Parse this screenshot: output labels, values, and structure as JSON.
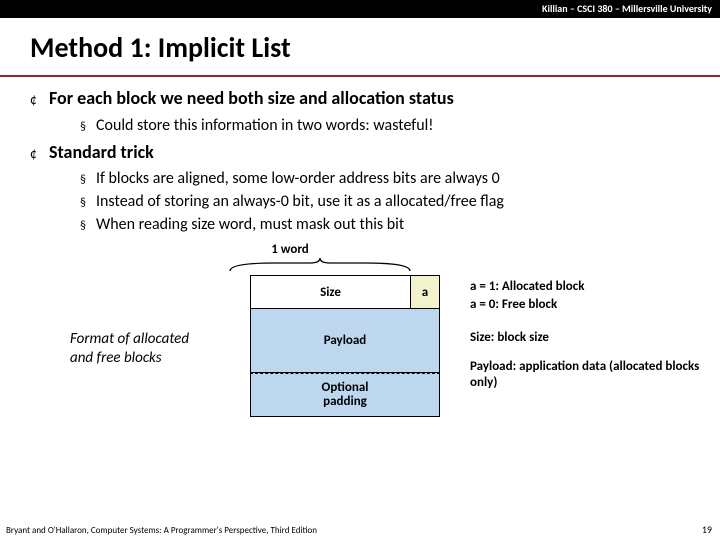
{
  "header": "Killian – CSCI 380 – Millersville University",
  "title": "Method 1: Implicit List",
  "bullets": {
    "b1": "For each block we need both size and allocation status",
    "b1s1": "Could store this information in two words: wasteful!",
    "b2": "Standard trick",
    "b2s1": "If blocks are aligned, some low-order address bits are always 0",
    "b2s2": "Instead of storing an always-0 bit, use it as a allocated/free flag",
    "b2s3": "When reading size word, must mask out this bit"
  },
  "diagram": {
    "word_label": "1 word",
    "format_label": "Format of allocated and free blocks",
    "size_label": "Size",
    "a_label": "a",
    "payload_label": "Payload",
    "padding_label": "Optional\npadding"
  },
  "legend": {
    "a1": "a = 1: Allocated block",
    "a0": "a = 0: Free block",
    "size": "Size: block size",
    "payload": "Payload: application data (allocated blocks only)"
  },
  "footer": {
    "left": "Bryant and O'Hallaron, Computer Systems: A Programmer's Perspective, Third Edition",
    "page": "19"
  },
  "colors": {
    "accent": "#9b2423",
    "payload_bg": "#bdd7ee",
    "a_bg": "#f2f2cc"
  }
}
